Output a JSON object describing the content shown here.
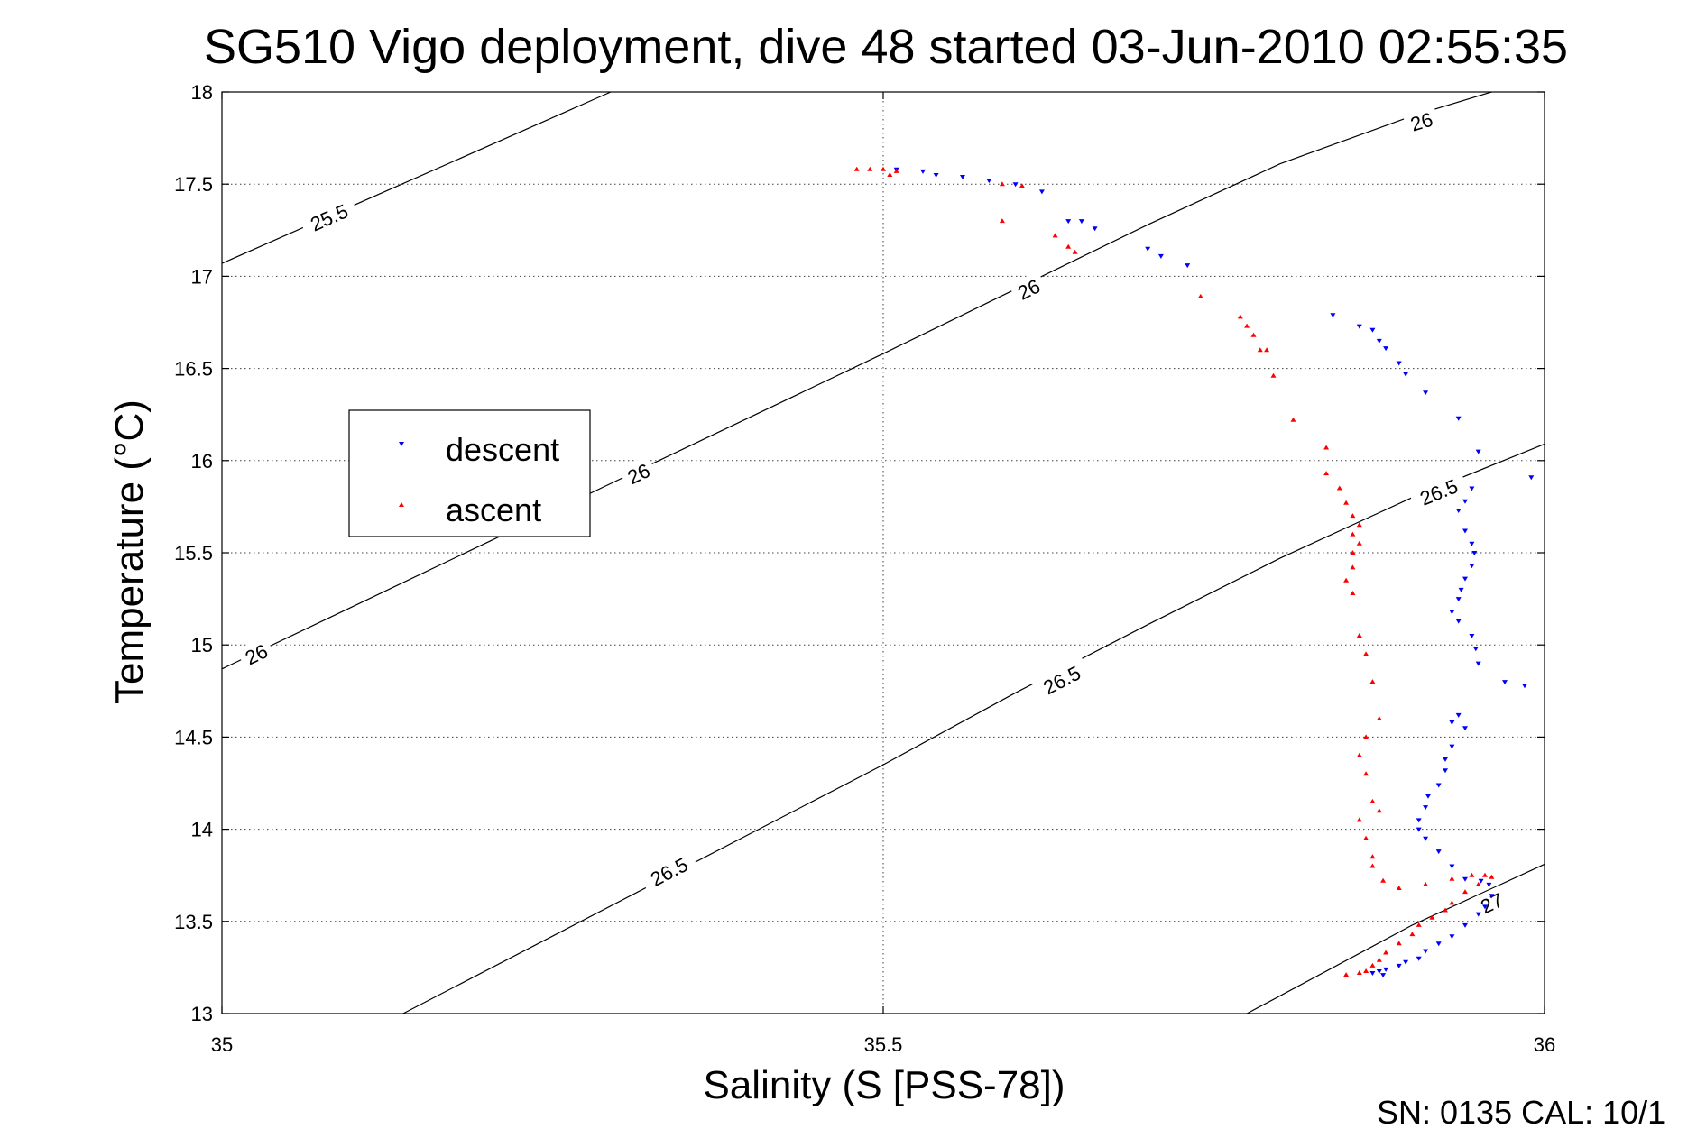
{
  "chart_data": {
    "type": "scatter",
    "title": "SG510 Vigo deployment, dive 48 started 03-Jun-2010 02:55:35",
    "xlabel": "Salinity (S [PSS-78])",
    "ylabel": "Temperature (°C)",
    "xlim": [
      35,
      36
    ],
    "ylim": [
      13,
      18
    ],
    "xticks": [
      "35",
      "35.5",
      "36"
    ],
    "yticks": [
      "13",
      "13.5",
      "14",
      "14.5",
      "15",
      "15.5",
      "16",
      "16.5",
      "17",
      "17.5",
      "18"
    ],
    "grid": true,
    "legend_position": "left",
    "footer": "SN: 0135  CAL: 10/1",
    "contours": [
      {
        "level": "25.5",
        "x": [
          35.0,
          35.294
        ],
        "y": [
          17.07,
          18.0
        ],
        "labels": [
          {
            "text": "25.5",
            "x": 35.081,
            "y": 17.32
          }
        ]
      },
      {
        "level": "26",
        "x": [
          35.0,
          35.5,
          35.6,
          35.7,
          35.8,
          35.9,
          35.96
        ],
        "y": [
          14.87,
          16.58,
          16.93,
          17.28,
          17.61,
          17.87,
          18.0
        ],
        "labels": [
          {
            "text": "26",
            "x": 35.026,
            "y": 14.95
          },
          {
            "text": "26",
            "x": 35.315,
            "y": 15.93
          },
          {
            "text": "26",
            "x": 35.61,
            "y": 16.93
          },
          {
            "text": "26",
            "x": 35.907,
            "y": 17.84
          }
        ]
      },
      {
        "level": "26.5",
        "x": [
          35.137,
          35.5,
          35.6,
          35.7,
          35.8,
          35.9,
          36.0
        ],
        "y": [
          13.0,
          14.35,
          14.74,
          15.11,
          15.47,
          15.8,
          16.09
        ],
        "labels": [
          {
            "text": "26.5",
            "x": 35.338,
            "y": 13.77
          },
          {
            "text": "26.5",
            "x": 35.635,
            "y": 14.81
          },
          {
            "text": "26.5",
            "x": 35.92,
            "y": 15.83
          }
        ]
      },
      {
        "level": "27",
        "x": [
          35.775,
          35.9,
          36.0
        ],
        "y": [
          13.0,
          13.48,
          13.81
        ],
        "labels": [
          {
            "text": "27",
            "x": 35.96,
            "y": 13.6
          }
        ]
      }
    ],
    "series": [
      {
        "name": "descent",
        "color": "#0000ff",
        "marker": "triangle-down",
        "points": [
          [
            35.51,
            17.58
          ],
          [
            35.53,
            17.57
          ],
          [
            35.54,
            17.55
          ],
          [
            35.56,
            17.54
          ],
          [
            35.58,
            17.52
          ],
          [
            35.6,
            17.5
          ],
          [
            35.62,
            17.46
          ],
          [
            35.64,
            17.3
          ],
          [
            35.65,
            17.3
          ],
          [
            35.66,
            17.26
          ],
          [
            35.7,
            17.15
          ],
          [
            35.71,
            17.11
          ],
          [
            35.73,
            17.06
          ],
          [
            35.84,
            16.79
          ],
          [
            35.86,
            16.73
          ],
          [
            35.87,
            16.71
          ],
          [
            35.875,
            16.65
          ],
          [
            35.88,
            16.61
          ],
          [
            35.89,
            16.53
          ],
          [
            35.895,
            16.47
          ],
          [
            35.91,
            16.37
          ],
          [
            35.935,
            16.23
          ],
          [
            35.95,
            16.05
          ],
          [
            35.99,
            15.91
          ],
          [
            35.945,
            15.85
          ],
          [
            35.94,
            15.78
          ],
          [
            35.935,
            15.73
          ],
          [
            35.94,
            15.62
          ],
          [
            35.945,
            15.55
          ],
          [
            35.947,
            15.5
          ],
          [
            35.945,
            15.43
          ],
          [
            35.94,
            15.36
          ],
          [
            35.937,
            15.3
          ],
          [
            35.935,
            15.25
          ],
          [
            35.93,
            15.18
          ],
          [
            35.935,
            15.13
          ],
          [
            35.945,
            15.05
          ],
          [
            35.948,
            14.98
          ],
          [
            35.95,
            14.9
          ],
          [
            35.97,
            14.8
          ],
          [
            35.985,
            14.78
          ],
          [
            35.935,
            14.62
          ],
          [
            35.93,
            14.58
          ],
          [
            35.94,
            14.55
          ],
          [
            35.93,
            14.45
          ],
          [
            35.925,
            14.38
          ],
          [
            35.925,
            14.32
          ],
          [
            35.92,
            14.24
          ],
          [
            35.912,
            14.18
          ],
          [
            35.91,
            14.12
          ],
          [
            35.905,
            14.05
          ],
          [
            35.905,
            14.0
          ],
          [
            35.91,
            13.95
          ],
          [
            35.92,
            13.88
          ],
          [
            35.93,
            13.8
          ],
          [
            35.94,
            13.73
          ],
          [
            35.952,
            13.72
          ],
          [
            35.958,
            13.7
          ],
          [
            35.96,
            13.64
          ],
          [
            35.955,
            13.58
          ],
          [
            35.95,
            13.54
          ],
          [
            35.94,
            13.48
          ],
          [
            35.93,
            13.42
          ],
          [
            35.92,
            13.38
          ],
          [
            35.91,
            13.34
          ],
          [
            35.905,
            13.3
          ],
          [
            35.895,
            13.28
          ],
          [
            35.89,
            13.26
          ],
          [
            35.88,
            13.24
          ],
          [
            35.875,
            13.23
          ],
          [
            35.87,
            13.22
          ],
          [
            35.878,
            13.21
          ]
        ]
      },
      {
        "name": "ascent",
        "color": "#ff0000",
        "marker": "triangle-up",
        "points": [
          [
            35.48,
            17.58
          ],
          [
            35.49,
            17.58
          ],
          [
            35.5,
            17.58
          ],
          [
            35.51,
            17.57
          ],
          [
            35.505,
            17.55
          ],
          [
            35.59,
            17.5
          ],
          [
            35.605,
            17.49
          ],
          [
            35.59,
            17.3
          ],
          [
            35.63,
            17.22
          ],
          [
            35.64,
            17.16
          ],
          [
            35.645,
            17.13
          ],
          [
            35.74,
            16.89
          ],
          [
            35.77,
            16.78
          ],
          [
            35.775,
            16.73
          ],
          [
            35.78,
            16.68
          ],
          [
            35.785,
            16.6
          ],
          [
            35.79,
            16.6
          ],
          [
            35.795,
            16.46
          ],
          [
            35.81,
            16.22
          ],
          [
            35.835,
            16.07
          ],
          [
            35.835,
            15.93
          ],
          [
            35.845,
            15.85
          ],
          [
            35.85,
            15.77
          ],
          [
            35.855,
            15.7
          ],
          [
            35.86,
            15.65
          ],
          [
            35.855,
            15.6
          ],
          [
            35.86,
            15.55
          ],
          [
            35.855,
            15.5
          ],
          [
            35.855,
            15.42
          ],
          [
            35.85,
            15.35
          ],
          [
            35.855,
            15.28
          ],
          [
            35.86,
            15.05
          ],
          [
            35.865,
            14.95
          ],
          [
            35.87,
            14.8
          ],
          [
            35.875,
            14.6
          ],
          [
            35.865,
            14.5
          ],
          [
            35.86,
            14.4
          ],
          [
            35.865,
            14.3
          ],
          [
            35.87,
            14.15
          ],
          [
            35.875,
            14.1
          ],
          [
            35.86,
            14.05
          ],
          [
            35.865,
            13.95
          ],
          [
            35.87,
            13.85
          ],
          [
            35.87,
            13.8
          ],
          [
            35.878,
            13.72
          ],
          [
            35.89,
            13.68
          ],
          [
            35.91,
            13.7
          ],
          [
            35.93,
            13.73
          ],
          [
            35.945,
            13.75
          ],
          [
            35.955,
            13.75
          ],
          [
            35.96,
            13.74
          ],
          [
            35.95,
            13.7
          ],
          [
            35.94,
            13.66
          ],
          [
            35.93,
            13.6
          ],
          [
            35.925,
            13.56
          ],
          [
            35.915,
            13.52
          ],
          [
            35.905,
            13.48
          ],
          [
            35.9,
            13.43
          ],
          [
            35.89,
            13.38
          ],
          [
            35.88,
            13.33
          ],
          [
            35.875,
            13.29
          ],
          [
            35.87,
            13.26
          ],
          [
            35.865,
            13.23
          ],
          [
            35.86,
            13.22
          ],
          [
            35.85,
            13.21
          ]
        ]
      }
    ]
  }
}
